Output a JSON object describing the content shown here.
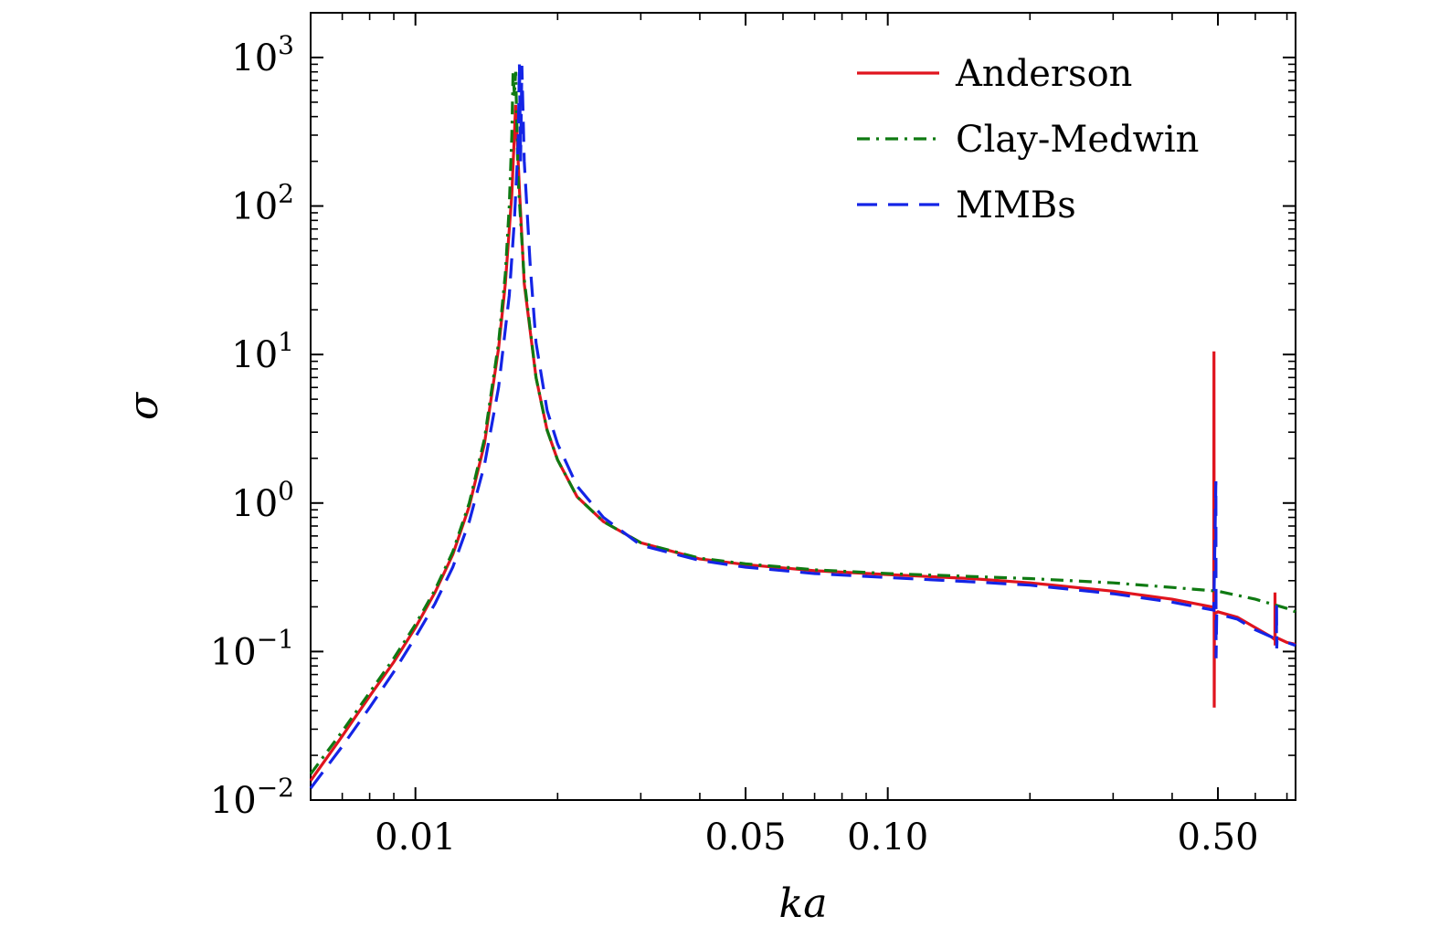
{
  "chart_data": {
    "type": "line",
    "title": "",
    "xlabel": "ka",
    "ylabel": "σ",
    "xscale": "log",
    "yscale": "log",
    "xlim": [
      0.006,
      0.73
    ],
    "ylim": [
      0.01,
      2000
    ],
    "grid": false,
    "legend_position": "top-right",
    "x_ticks": [
      {
        "value": 0.01,
        "label": "0.01"
      },
      {
        "value": 0.05,
        "label": "0.05"
      },
      {
        "value": 0.1,
        "label": "0.10"
      },
      {
        "value": 0.5,
        "label": "0.50"
      }
    ],
    "y_ticks": [
      {
        "value": 0.01,
        "base": "10",
        "exp": "−2"
      },
      {
        "value": 0.1,
        "base": "10",
        "exp": "−1"
      },
      {
        "value": 1,
        "base": "10",
        "exp": "0"
      },
      {
        "value": 10,
        "base": "10",
        "exp": "1"
      },
      {
        "value": 100,
        "base": "10",
        "exp": "2"
      },
      {
        "value": 1000,
        "base": "10",
        "exp": "3"
      }
    ],
    "series": [
      {
        "name": "Anderson",
        "color": "#e0141e",
        "dash": "solid",
        "points": [
          [
            0.006,
            0.0135
          ],
          [
            0.007,
            0.027
          ],
          [
            0.008,
            0.05
          ],
          [
            0.009,
            0.085
          ],
          [
            0.01,
            0.145
          ],
          [
            0.011,
            0.25
          ],
          [
            0.012,
            0.45
          ],
          [
            0.013,
            0.95
          ],
          [
            0.014,
            2.5
          ],
          [
            0.015,
            11
          ],
          [
            0.0155,
            30
          ],
          [
            0.016,
            120
          ],
          [
            0.0163,
            480
          ],
          [
            0.0166,
            130
          ],
          [
            0.017,
            30
          ],
          [
            0.018,
            7
          ],
          [
            0.019,
            3.1
          ],
          [
            0.02,
            1.95
          ],
          [
            0.022,
            1.1
          ],
          [
            0.025,
            0.75
          ],
          [
            0.03,
            0.54
          ],
          [
            0.04,
            0.42
          ],
          [
            0.05,
            0.385
          ],
          [
            0.07,
            0.35
          ],
          [
            0.1,
            0.33
          ],
          [
            0.15,
            0.31
          ],
          [
            0.2,
            0.29
          ],
          [
            0.3,
            0.255
          ],
          [
            0.4,
            0.225
          ],
          [
            0.485,
            0.2
          ],
          [
            0.49,
            0.2
          ],
          [
            0.4905,
            10.5
          ],
          [
            0.491,
            0.042
          ],
          [
            0.4915,
            0.18
          ],
          [
            0.5,
            0.185
          ],
          [
            0.55,
            0.17
          ],
          [
            0.6,
            0.145
          ],
          [
            0.65,
            0.125
          ],
          [
            0.66,
            0.12
          ],
          [
            0.6605,
            0.25
          ],
          [
            0.661,
            0.11
          ],
          [
            0.662,
            0.125
          ],
          [
            0.7,
            0.115
          ],
          [
            0.73,
            0.112
          ]
        ]
      },
      {
        "name": "Clay-Medwin",
        "color": "#0f7a12",
        "dash": "dashdot",
        "points": [
          [
            0.006,
            0.015
          ],
          [
            0.007,
            0.029
          ],
          [
            0.008,
            0.053
          ],
          [
            0.009,
            0.09
          ],
          [
            0.01,
            0.152
          ],
          [
            0.011,
            0.26
          ],
          [
            0.012,
            0.47
          ],
          [
            0.013,
            1.0
          ],
          [
            0.014,
            2.7
          ],
          [
            0.015,
            12
          ],
          [
            0.0155,
            35
          ],
          [
            0.0158,
            100
          ],
          [
            0.016,
            300
          ],
          [
            0.0161,
            820
          ],
          [
            0.0162,
            550
          ],
          [
            0.0163,
            800
          ],
          [
            0.0165,
            150
          ],
          [
            0.017,
            32
          ],
          [
            0.018,
            7
          ],
          [
            0.019,
            3.1
          ],
          [
            0.02,
            1.95
          ],
          [
            0.022,
            1.1
          ],
          [
            0.025,
            0.75
          ],
          [
            0.03,
            0.54
          ],
          [
            0.04,
            0.425
          ],
          [
            0.05,
            0.39
          ],
          [
            0.07,
            0.355
          ],
          [
            0.1,
            0.335
          ],
          [
            0.15,
            0.32
          ],
          [
            0.2,
            0.31
          ],
          [
            0.3,
            0.29
          ],
          [
            0.4,
            0.27
          ],
          [
            0.5,
            0.255
          ],
          [
            0.6,
            0.225
          ],
          [
            0.7,
            0.195
          ],
          [
            0.73,
            0.185
          ]
        ]
      },
      {
        "name": "MMBs",
        "color": "#1424e6",
        "dash": "dashed",
        "points": [
          [
            0.006,
            0.012
          ],
          [
            0.007,
            0.023
          ],
          [
            0.008,
            0.042
          ],
          [
            0.009,
            0.073
          ],
          [
            0.01,
            0.125
          ],
          [
            0.011,
            0.21
          ],
          [
            0.012,
            0.37
          ],
          [
            0.013,
            0.75
          ],
          [
            0.014,
            1.8
          ],
          [
            0.015,
            6
          ],
          [
            0.0158,
            25
          ],
          [
            0.0162,
            80
          ],
          [
            0.0165,
            260
          ],
          [
            0.0166,
            920
          ],
          [
            0.0167,
            200
          ],
          [
            0.0168,
            880
          ],
          [
            0.017,
            200
          ],
          [
            0.0175,
            40
          ],
          [
            0.018,
            12
          ],
          [
            0.019,
            4.2
          ],
          [
            0.02,
            2.5
          ],
          [
            0.022,
            1.3
          ],
          [
            0.025,
            0.8
          ],
          [
            0.03,
            0.52
          ],
          [
            0.04,
            0.41
          ],
          [
            0.05,
            0.37
          ],
          [
            0.07,
            0.335
          ],
          [
            0.1,
            0.315
          ],
          [
            0.15,
            0.295
          ],
          [
            0.2,
            0.28
          ],
          [
            0.3,
            0.245
          ],
          [
            0.4,
            0.215
          ],
          [
            0.49,
            0.19
          ],
          [
            0.495,
            1.4
          ],
          [
            0.4955,
            0.09
          ],
          [
            0.497,
            0.18
          ],
          [
            0.55,
            0.165
          ],
          [
            0.6,
            0.14
          ],
          [
            0.65,
            0.125
          ],
          [
            0.665,
            0.12
          ],
          [
            0.6655,
            0.21
          ],
          [
            0.666,
            0.105
          ],
          [
            0.667,
            0.118
          ],
          [
            0.7,
            0.115
          ],
          [
            0.73,
            0.11
          ]
        ]
      }
    ]
  }
}
